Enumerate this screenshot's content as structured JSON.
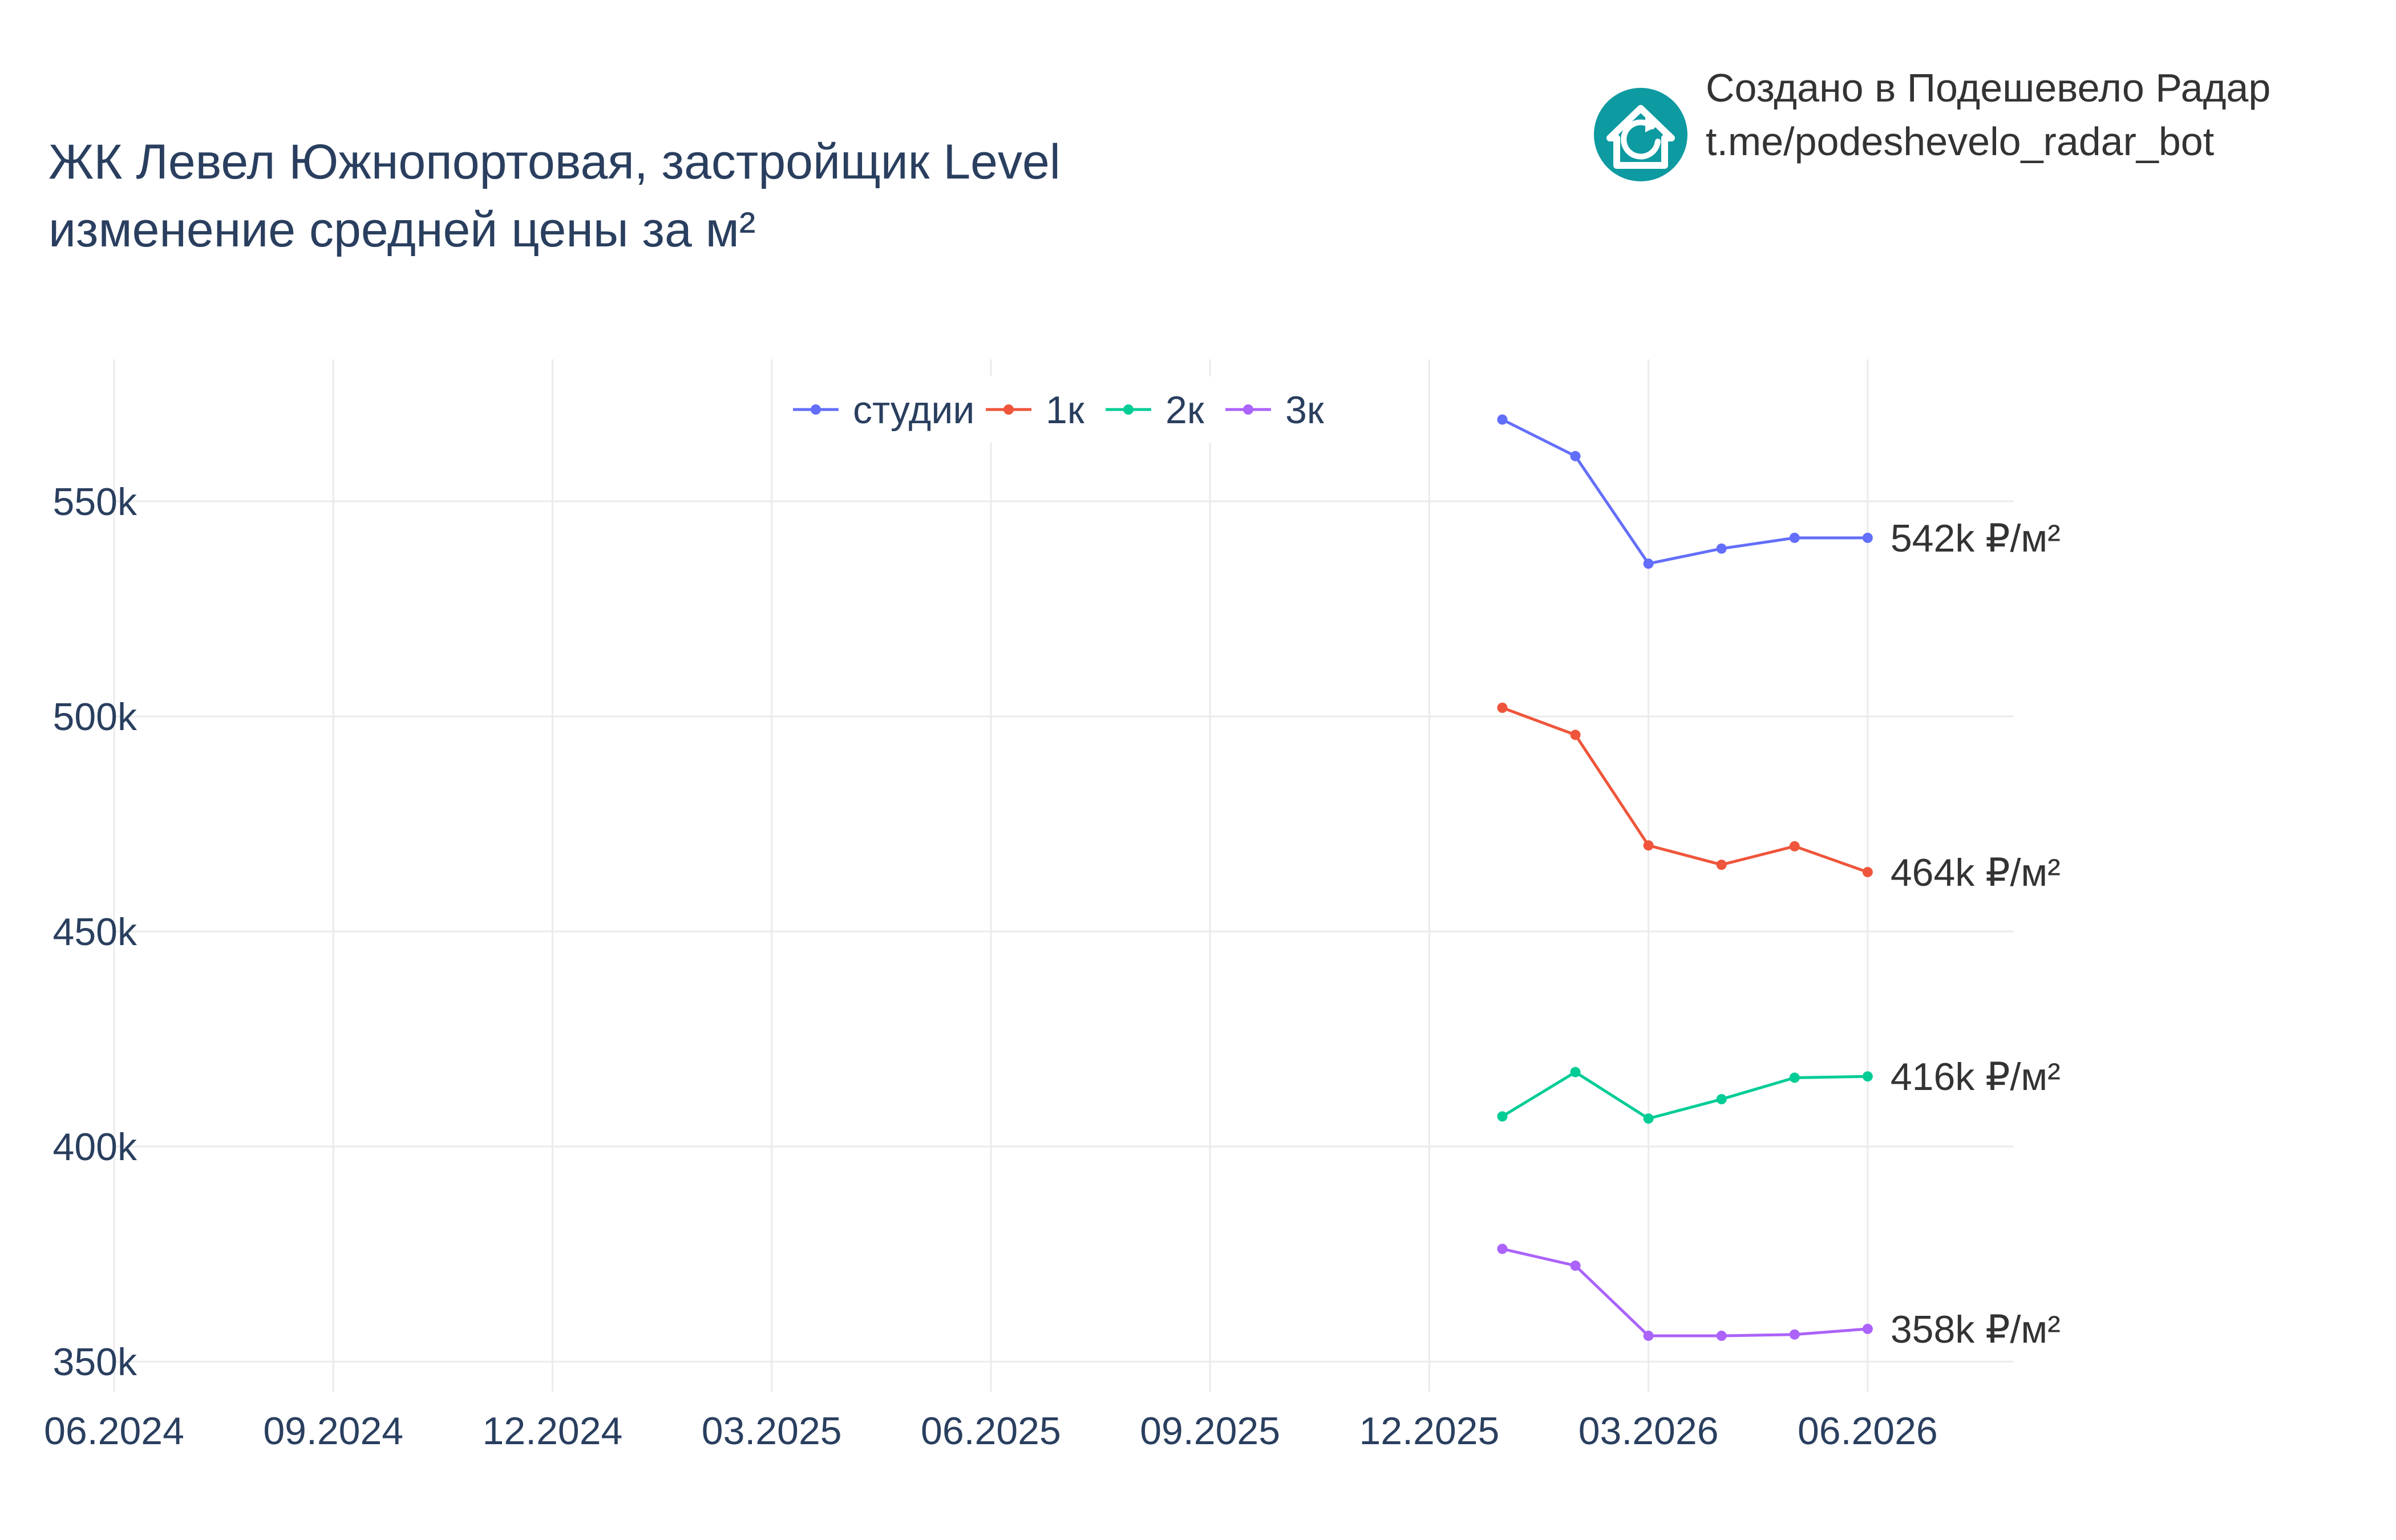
{
  "branding": {
    "line1": "Создано в Подешевело Радар",
    "line2": "t.me/podeshevelo_radar_bot",
    "logo_icon": "house-refresh-icon",
    "logo_color": "#0d9aa1"
  },
  "chart_data": {
    "type": "line",
    "title_lines": [
      "ЖК Левел Южнопортовая, застройщик Level",
      "изменение средней цены за м²"
    ],
    "xlabel": "",
    "ylabel": "",
    "x_ticks": [
      "06.2024",
      "09.2024",
      "12.2024",
      "03.2025",
      "06.2025",
      "09.2025",
      "12.2025",
      "03.2026",
      "06.2026"
    ],
    "x_tick_values": [
      0,
      3,
      6,
      9,
      12,
      15,
      18,
      21,
      24
    ],
    "xlim": [
      0,
      26
    ],
    "y_ticks": [
      "350k",
      "400k",
      "450k",
      "500k",
      "550k"
    ],
    "y_tick_values": [
      350000,
      400000,
      450000,
      500000,
      550000
    ],
    "ylim": [
      343000,
      583000
    ],
    "grid": true,
    "legend_position": "top-center",
    "x": [
      19,
      20,
      21,
      22,
      23,
      24
    ],
    "x_dates": [
      "01.2026",
      "02.2026",
      "03.2026",
      "04.2026",
      "05.2026",
      "06.2026"
    ],
    "series": [
      {
        "name": "студии",
        "color": "#636efa",
        "values": [
          569000,
          560500,
          535500,
          539000,
          541500,
          541500
        ],
        "end_label": "542k ₽/м²"
      },
      {
        "name": "1к",
        "color": "#ef553b",
        "values": [
          502000,
          495700,
          470000,
          465500,
          469800,
          463800
        ],
        "end_label": "464k ₽/м²"
      },
      {
        "name": "2к",
        "color": "#00cc96",
        "values": [
          407000,
          417300,
          406500,
          411000,
          416000,
          416300
        ],
        "end_label": "416k ₽/м²"
      },
      {
        "name": "3к",
        "color": "#ab63fa",
        "values": [
          376200,
          372300,
          356000,
          356000,
          356300,
          357600
        ],
        "end_label": "358k ₽/м²"
      }
    ]
  }
}
